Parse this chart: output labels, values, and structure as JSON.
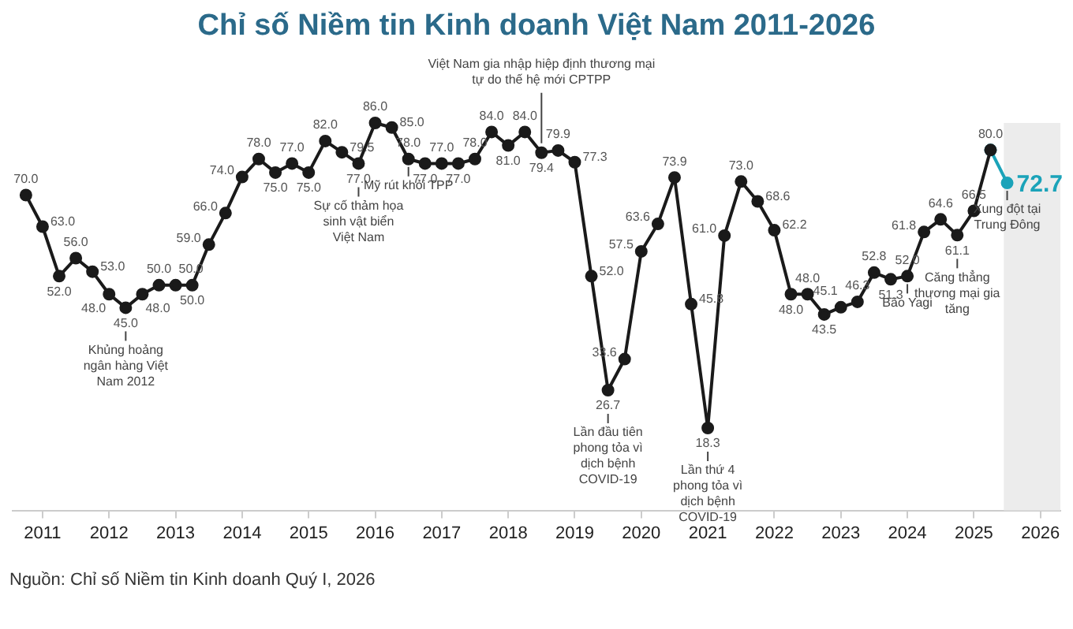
{
  "chart_data": {
    "type": "line",
    "title": "Chỉ số Niềm tin Kinh doanh Việt Nam 2011-2026",
    "x": [
      2011.25,
      2011.5,
      2011.75,
      2012.0,
      2012.25,
      2012.5,
      2012.75,
      2013.0,
      2013.25,
      2013.5,
      2013.75,
      2014.0,
      2014.25,
      2014.5,
      2014.75,
      2015.0,
      2015.25,
      2015.5,
      2015.75,
      2016.0,
      2016.25,
      2016.5,
      2016.75,
      2017.0,
      2017.25,
      2017.5,
      2017.75,
      2018.0,
      2018.25,
      2018.5,
      2018.75,
      2019.0,
      2019.25,
      2019.5,
      2019.75,
      2020.0,
      2020.25,
      2020.5,
      2020.75,
      2021.0,
      2021.25,
      2021.5,
      2021.75,
      2022.0,
      2022.25,
      2022.5,
      2022.75,
      2023.0,
      2023.25,
      2023.5,
      2023.75,
      2024.0,
      2024.25,
      2024.5,
      2024.75,
      2025.0,
      2025.25,
      2025.5,
      2025.75,
      2026.0
    ],
    "series": [
      {
        "color": "#1a1a1a",
        "values": [
          70.0,
          63.0,
          52.0,
          56.0,
          53.0,
          48.0,
          45.0,
          48.0,
          50.0,
          50.0,
          50.0,
          59.0,
          66.0,
          74.0,
          78.0,
          75.0,
          77.0,
          75.0,
          82.0,
          79.5,
          77.0,
          86.0,
          85.0,
          78.0,
          77.0,
          77.0,
          77.0,
          78.0,
          84.0,
          81.0,
          84.0,
          79.4,
          79.9,
          77.3,
          52.0,
          26.7,
          33.6,
          57.5,
          63.6,
          73.9,
          45.8,
          18.3,
          61.0,
          73.0,
          68.6,
          62.2,
          48.0,
          48.0,
          43.5,
          45.1,
          46.3,
          52.8,
          51.3,
          52.0,
          61.8,
          64.6,
          61.1,
          66.5,
          80.0,
          null
        ],
        "value_labels": [
          "70.0",
          "63.0",
          "52.0",
          "56.0",
          "53.0",
          "48.0",
          "45.0",
          "48.0",
          "50.0",
          "50.0",
          "50.0",
          "59.0",
          "66.0",
          "74.0",
          "78.0",
          "75.0",
          "77.0",
          "75.0",
          "82.0",
          "79.5",
          "77.0",
          "86.0",
          "85.0",
          "78.0",
          "77.0",
          "77.0",
          "77.0",
          "78.0",
          "84.0",
          "81.0",
          "84.0",
          "79.4",
          "79.9",
          "77.3",
          "52.0",
          "26.7",
          "33.6",
          "57.5",
          "63.6",
          "73.9",
          "45.8",
          "18.3",
          "61.0",
          "73.0",
          "68.6",
          "62.2",
          "48.0",
          "48.0",
          "43.5",
          "45.1",
          "46.3",
          "52.8",
          "51.3",
          "52.0",
          "61.8",
          "64.6",
          "61.1",
          "66.5",
          "80.0",
          null
        ]
      },
      {
        "color": "#1ba3b9",
        "values": [
          null,
          null,
          null,
          null,
          null,
          null,
          null,
          null,
          null,
          null,
          null,
          null,
          null,
          null,
          null,
          null,
          null,
          null,
          null,
          null,
          null,
          null,
          null,
          null,
          null,
          null,
          null,
          null,
          null,
          null,
          null,
          null,
          null,
          null,
          null,
          null,
          null,
          null,
          null,
          null,
          null,
          null,
          null,
          null,
          null,
          null,
          null,
          null,
          null,
          null,
          null,
          null,
          null,
          null,
          null,
          null,
          null,
          null,
          80.0,
          72.7
        ],
        "value_labels": [
          null,
          null,
          null,
          null,
          null,
          null,
          null,
          null,
          null,
          null,
          null,
          null,
          null,
          null,
          null,
          null,
          null,
          null,
          null,
          null,
          null,
          null,
          null,
          null,
          null,
          null,
          null,
          null,
          null,
          null,
          null,
          null,
          null,
          null,
          null,
          null,
          null,
          null,
          null,
          null,
          null,
          null,
          null,
          null,
          null,
          null,
          null,
          null,
          null,
          null,
          null,
          null,
          null,
          null,
          null,
          null,
          null,
          null,
          null,
          "72.7"
        ]
      }
    ],
    "marker": "circle",
    "tick_labels": "x",
    "xlim": [
      2011.05,
      2026.8
    ],
    "xticks": [
      {
        "value": 2011.5,
        "label": "2011"
      },
      {
        "value": 2012.5,
        "label": "2012"
      },
      {
        "value": 2013.5,
        "label": "2013"
      },
      {
        "value": 2014.5,
        "label": "2014"
      },
      {
        "value": 2015.5,
        "label": "2015"
      },
      {
        "value": 2016.5,
        "label": "2016"
      },
      {
        "value": 2017.5,
        "label": "2017"
      },
      {
        "value": 2018.5,
        "label": "2018"
      },
      {
        "value": 2019.5,
        "label": "2019"
      },
      {
        "value": 2020.5,
        "label": "2020"
      },
      {
        "value": 2021.5,
        "label": "2021"
      },
      {
        "value": 2022.5,
        "label": "2022"
      },
      {
        "value": 2023.5,
        "label": "2023"
      },
      {
        "value": 2024.5,
        "label": "2024"
      },
      {
        "value": 2025.5,
        "label": "2025"
      },
      {
        "value": 2026.5,
        "label": "2026"
      }
    ],
    "bands": [
      {
        "axis": "x",
        "from": 2025.95,
        "to": 2026.8,
        "color": "#ececec"
      }
    ],
    "annotations": [
      {
        "text": "Khủng hoảng ngân hàng Việt Nam 2012",
        "x": 2012.75,
        "y": 45.0
      },
      {
        "text": "Sự cố thảm họa sinh vật biển Việt Nam",
        "x": 2016.25,
        "y": 77.0
      },
      {
        "text": "Mỹ rút khỏi TPP",
        "x": 2017.0,
        "y": 78.0
      },
      {
        "text": "Việt Nam gia nhập hiệp định thương mại tự do thế hệ mới CPTPP",
        "x": 2019.0,
        "y": 79.4
      },
      {
        "text": "Lần đầu tiên phong tỏa vì dịch bệnh COVID-19",
        "x": 2020.0,
        "y": 26.7
      },
      {
        "text": "Lần thứ 4 phong tỏa vì dịch bệnh COVID-19",
        "x": 2021.5,
        "y": 18.3
      },
      {
        "text": "Bão Yagi",
        "x": 2024.5,
        "y": 52.0
      },
      {
        "text": "Căng thẳng thương mại gia tăng",
        "x": 2025.25,
        "y": 61.1
      },
      {
        "text": "Xung đột tại Trung Đông",
        "x": 2026.0,
        "y": 72.7
      },
      "Nguồn: Chỉ số Niềm tin Kinh doanh Quý I, 2026"
    ]
  }
}
